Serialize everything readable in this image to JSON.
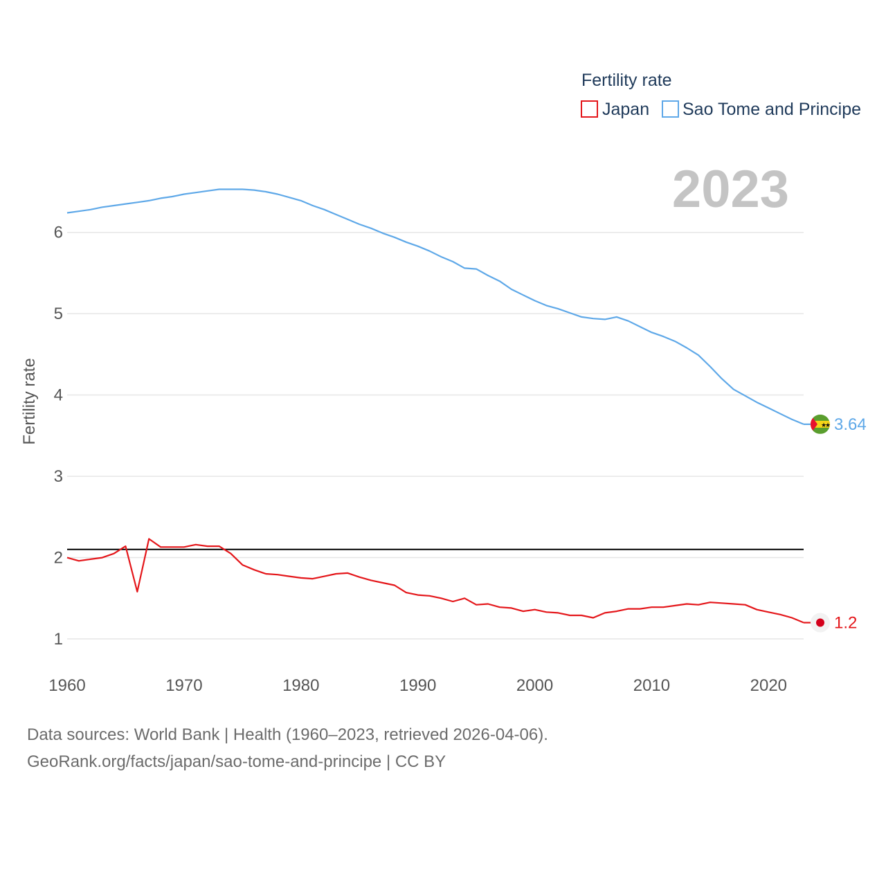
{
  "chart_data": {
    "type": "line",
    "legend_title": "Fertility rate",
    "year_label": "2023",
    "ylabel": "Fertility rate",
    "xlabel": "",
    "xlim": [
      1960,
      2023
    ],
    "ylim": [
      0.6,
      6.9
    ],
    "x_ticks": [
      "1960",
      "1970",
      "1980",
      "1990",
      "2000",
      "2010",
      "2020"
    ],
    "y_ticks": [
      "1",
      "2",
      "3",
      "4",
      "5",
      "6"
    ],
    "reference_line": 2.1,
    "legend_position": "top-right",
    "grid": true,
    "series": [
      {
        "name": "Japan",
        "color": "#e4161a",
        "end_label": "1.2",
        "flag_icon": "japan-flag-icon",
        "x": [
          1960,
          1961,
          1962,
          1963,
          1964,
          1965,
          1966,
          1967,
          1968,
          1969,
          1970,
          1971,
          1972,
          1973,
          1974,
          1975,
          1976,
          1977,
          1978,
          1979,
          1980,
          1981,
          1982,
          1983,
          1984,
          1985,
          1986,
          1987,
          1988,
          1989,
          1990,
          1991,
          1992,
          1993,
          1994,
          1995,
          1996,
          1997,
          1998,
          1999,
          2000,
          2001,
          2002,
          2003,
          2004,
          2005,
          2006,
          2007,
          2008,
          2009,
          2010,
          2011,
          2012,
          2013,
          2014,
          2015,
          2016,
          2017,
          2018,
          2019,
          2020,
          2021,
          2022,
          2023
        ],
        "values": [
          2.0,
          1.96,
          1.98,
          2.0,
          2.05,
          2.14,
          1.58,
          2.23,
          2.13,
          2.13,
          2.13,
          2.16,
          2.14,
          2.14,
          2.05,
          1.91,
          1.85,
          1.8,
          1.79,
          1.77,
          1.75,
          1.74,
          1.77,
          1.8,
          1.81,
          1.76,
          1.72,
          1.69,
          1.66,
          1.57,
          1.54,
          1.53,
          1.5,
          1.46,
          1.5,
          1.42,
          1.43,
          1.39,
          1.38,
          1.34,
          1.36,
          1.33,
          1.32,
          1.29,
          1.29,
          1.26,
          1.32,
          1.34,
          1.37,
          1.37,
          1.39,
          1.39,
          1.41,
          1.43,
          1.42,
          1.45,
          1.44,
          1.43,
          1.42,
          1.36,
          1.33,
          1.3,
          1.26,
          1.2
        ]
      },
      {
        "name": "Sao Tome and Principe",
        "color": "#5ea8e8",
        "end_label": "3.64",
        "flag_icon": "sao-tome-flag-icon",
        "x": [
          1960,
          1961,
          1962,
          1963,
          1964,
          1965,
          1966,
          1967,
          1968,
          1969,
          1970,
          1971,
          1972,
          1973,
          1974,
          1975,
          1976,
          1977,
          1978,
          1979,
          1980,
          1981,
          1982,
          1983,
          1984,
          1985,
          1986,
          1987,
          1988,
          1989,
          1990,
          1991,
          1992,
          1993,
          1994,
          1995,
          1996,
          1997,
          1998,
          1999,
          2000,
          2001,
          2002,
          2003,
          2004,
          2005,
          2006,
          2007,
          2008,
          2009,
          2010,
          2011,
          2012,
          2013,
          2014,
          2015,
          2016,
          2017,
          2018,
          2019,
          2020,
          2021,
          2022,
          2023
        ],
        "values": [
          6.24,
          6.26,
          6.28,
          6.31,
          6.33,
          6.35,
          6.37,
          6.39,
          6.42,
          6.44,
          6.47,
          6.49,
          6.51,
          6.53,
          6.53,
          6.53,
          6.52,
          6.5,
          6.47,
          6.43,
          6.39,
          6.33,
          6.28,
          6.22,
          6.16,
          6.1,
          6.05,
          5.99,
          5.94,
          5.88,
          5.83,
          5.77,
          5.7,
          5.64,
          5.56,
          5.55,
          5.47,
          5.4,
          5.3,
          5.23,
          5.16,
          5.1,
          5.06,
          5.01,
          4.96,
          4.94,
          4.93,
          4.96,
          4.91,
          4.84,
          4.77,
          4.72,
          4.66,
          4.58,
          4.49,
          4.35,
          4.2,
          4.07,
          3.99,
          3.91,
          3.84,
          3.77,
          3.7,
          3.64
        ]
      }
    ]
  },
  "source": {
    "line1": "Data sources: World Bank | Health (1960–2023, retrieved 2026-04-06).",
    "line2": "GeoRank.org/facts/japan/sao-tome-and-principe | CC BY"
  }
}
